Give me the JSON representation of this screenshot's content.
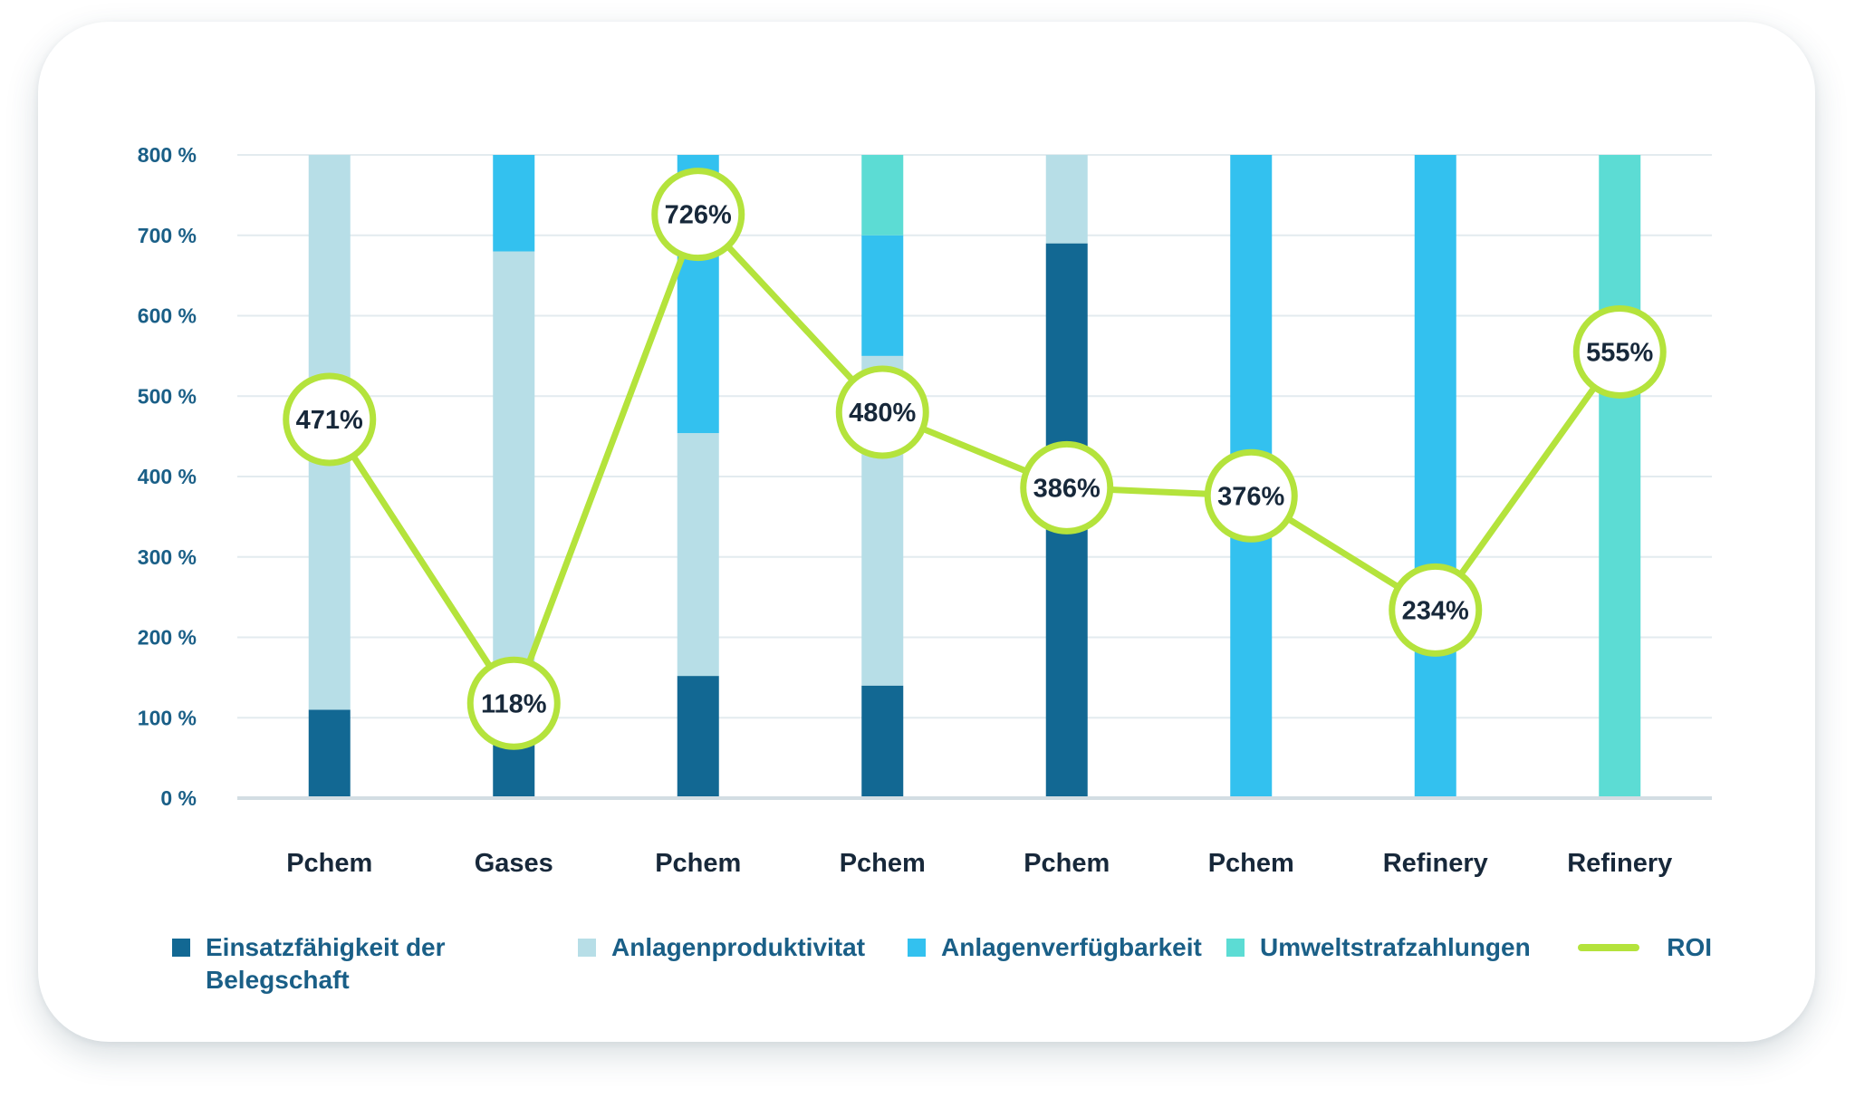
{
  "chart_data": {
    "type": "bar",
    "stacked": true,
    "categories": [
      "Pchem",
      "Gases",
      "Pchem",
      "Pchem",
      "Pchem",
      "Pchem",
      "Refinery",
      "Refinery"
    ],
    "ylim": [
      0,
      800
    ],
    "yticks": [
      0,
      100,
      200,
      300,
      400,
      500,
      600,
      700,
      800
    ],
    "ytick_labels": [
      "0 %",
      "100 %",
      "200 %",
      "300 %",
      "400 %",
      "500 %",
      "600 %",
      "700 %",
      "800 %"
    ],
    "grid": true,
    "legend_position": "bottom",
    "series": [
      {
        "name": "Einsatzfähigkeit der Belegschaft",
        "name_lines": [
          "Einsatzfähigkeit der",
          "Belegschaft"
        ],
        "color": "#126893",
        "values": [
          110,
          110,
          152,
          140,
          690,
          0,
          0,
          0
        ]
      },
      {
        "name": "Anlagenproduktivitat",
        "color": "#b7dee7",
        "values": [
          690,
          570,
          302,
          410,
          110,
          0,
          0,
          0
        ]
      },
      {
        "name": "Anlagenverfügbarkeit",
        "color": "#33c1ef",
        "values": [
          0,
          120,
          346,
          150,
          0,
          800,
          800,
          0
        ]
      },
      {
        "name": "Umweltstrafzahlungen",
        "color": "#5cdcd4",
        "values": [
          0,
          0,
          0,
          100,
          0,
          0,
          0,
          800
        ]
      }
    ],
    "line_series": {
      "name": "ROI",
      "color": "#b4e33c",
      "values": [
        471,
        118,
        726,
        480,
        386,
        376,
        234,
        555
      ],
      "labels": [
        "471%",
        "118%",
        "726%",
        "480%",
        "386%",
        "376%",
        "234%",
        "555%"
      ]
    }
  }
}
